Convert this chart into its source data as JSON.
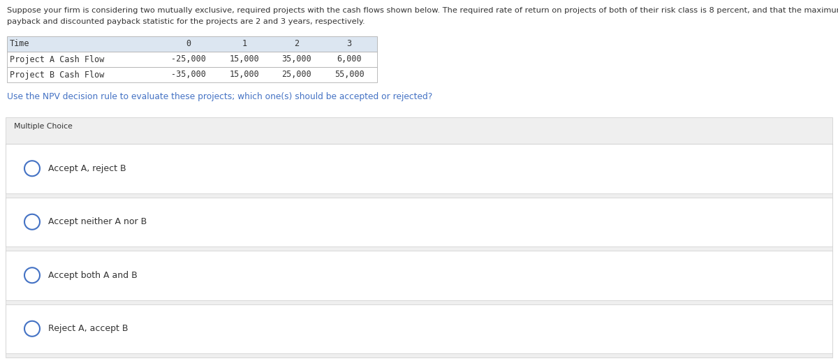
{
  "title_line1": "Suppose your firm is considering two mutually exclusive, required projects with the cash flows shown below. The required rate of return on projects of both of their risk class is 8 percent, and that the maximum allowable",
  "title_line2": "payback and discounted payback statistic for the projects are 2 and 3 years, respectively.",
  "question_text": "Use the NPV decision rule to evaluate these projects; which one(s) should be accepted or rejected?",
  "table_headers": [
    "Time",
    "0",
    "1",
    "2",
    "3"
  ],
  "table_row1_label": "Project A Cash Flow",
  "table_row2_label": "Project B Cash Flow",
  "table_row1_values": [
    "-25,000",
    "15,000",
    "35,000",
    "6,000"
  ],
  "table_row2_values": [
    "-35,000",
    "15,000",
    "25,000",
    "55,000"
  ],
  "multiple_choice_label": "Multiple Choice",
  "choices": [
    "Accept A, reject B",
    "Accept neither A nor B",
    "Accept both A and B",
    "Reject A, accept B"
  ],
  "bg_color": "#efefef",
  "white_color": "#ffffff",
  "table_header_bg": "#dce6f1",
  "table_border_color": "#b0b0b0",
  "text_color": "#333333",
  "blue_text_color": "#4472c4",
  "circle_color": "#4472c4",
  "monospace_font": "DejaVu Sans Mono",
  "normal_font": "DejaVu Sans",
  "title_fontsize": 8.2,
  "table_fontsize": 8.5,
  "question_fontsize": 8.8,
  "choice_fontsize": 9.0,
  "mc_label_fontsize": 7.8
}
